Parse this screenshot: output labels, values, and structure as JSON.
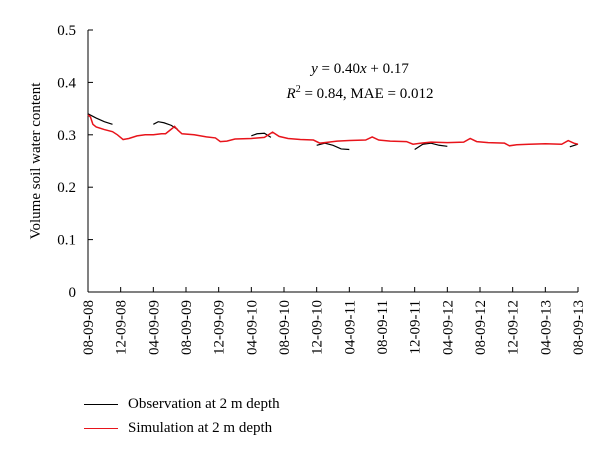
{
  "chart_data": {
    "type": "line",
    "ylabel": "Volume soil water content",
    "xlabel": "",
    "ylim": [
      0,
      0.5
    ],
    "yticks": [
      "0",
      "0.1",
      "0.2",
      "0.3",
      "0.4",
      "0.5"
    ],
    "xticks": [
      "08-09-08",
      "12-09-08",
      "04-09-09",
      "08-09-09",
      "12-09-09",
      "04-09-10",
      "08-09-10",
      "12-09-10",
      "04-09-11",
      "08-09-11",
      "12-09-11",
      "04-09-12",
      "08-09-12",
      "12-09-12",
      "04-09-13",
      "08-09-13"
    ],
    "annotation": {
      "line1": {
        "y": "y",
        "eq": " = 0.40",
        "x": "x",
        "rest": " + 0.17"
      },
      "line2": {
        "r": "R",
        "sup": "2",
        "rest": " = 0.84, MAE = 0.012"
      }
    },
    "series": [
      {
        "name": "Observation at 2 m depth",
        "color": "#000000",
        "segments": [
          [
            [
              0.0,
              0.34
            ],
            [
              1.0,
              0.332
            ],
            [
              2.0,
              0.325
            ],
            [
              3.0,
              0.32
            ]
          ],
          [
            [
              8.0,
              0.32
            ],
            [
              8.6,
              0.325
            ],
            [
              9.3,
              0.323
            ],
            [
              10.2,
              0.318
            ],
            [
              11.0,
              0.31
            ]
          ],
          [
            [
              20.0,
              0.298
            ],
            [
              20.7,
              0.302
            ],
            [
              21.6,
              0.303
            ],
            [
              22.4,
              0.295
            ]
          ],
          [
            [
              28.0,
              0.28
            ],
            [
              29.0,
              0.284
            ],
            [
              30.0,
              0.28
            ],
            [
              31.0,
              0.273
            ],
            [
              32.0,
              0.272
            ]
          ],
          [
            [
              40.0,
              0.272
            ],
            [
              41.0,
              0.282
            ],
            [
              42.0,
              0.284
            ],
            [
              43.0,
              0.28
            ],
            [
              44.0,
              0.278
            ]
          ],
          [
            [
              59.0,
              0.277
            ],
            [
              60.0,
              0.282
            ]
          ]
        ]
      },
      {
        "name": "Simulation at 2 m depth",
        "color": "#e8141b",
        "points": [
          [
            0.0,
            0.338
          ],
          [
            0.3,
            0.334
          ],
          [
            0.6,
            0.32
          ],
          [
            1.0,
            0.315
          ],
          [
            2.0,
            0.31
          ],
          [
            3.0,
            0.306
          ],
          [
            3.6,
            0.3
          ],
          [
            4.3,
            0.291
          ],
          [
            5.0,
            0.293
          ],
          [
            6.0,
            0.298
          ],
          [
            7.0,
            0.3
          ],
          [
            8.0,
            0.3
          ],
          [
            9.0,
            0.302
          ],
          [
            9.5,
            0.302
          ],
          [
            10.3,
            0.312
          ],
          [
            10.6,
            0.316
          ],
          [
            11.0,
            0.309
          ],
          [
            11.5,
            0.302
          ],
          [
            13.0,
            0.3
          ],
          [
            14.5,
            0.296
          ],
          [
            15.6,
            0.294
          ],
          [
            16.2,
            0.287
          ],
          [
            17.0,
            0.288
          ],
          [
            18.0,
            0.292
          ],
          [
            20.0,
            0.293
          ],
          [
            21.6,
            0.295
          ],
          [
            22.6,
            0.305
          ],
          [
            23.4,
            0.297
          ],
          [
            24.5,
            0.293
          ],
          [
            26.0,
            0.291
          ],
          [
            27.6,
            0.29
          ],
          [
            28.4,
            0.284
          ],
          [
            29.5,
            0.286
          ],
          [
            30.5,
            0.288
          ],
          [
            32.0,
            0.289
          ],
          [
            34.0,
            0.29
          ],
          [
            34.8,
            0.296
          ],
          [
            35.6,
            0.29
          ],
          [
            37.0,
            0.288
          ],
          [
            39.0,
            0.287
          ],
          [
            39.8,
            0.282
          ],
          [
            40.8,
            0.284
          ],
          [
            42.0,
            0.286
          ],
          [
            44.0,
            0.285
          ],
          [
            46.0,
            0.286
          ],
          [
            46.8,
            0.293
          ],
          [
            47.6,
            0.287
          ],
          [
            49.0,
            0.285
          ],
          [
            51.0,
            0.284
          ],
          [
            51.6,
            0.279
          ],
          [
            52.5,
            0.281
          ],
          [
            54.0,
            0.282
          ],
          [
            56.0,
            0.283
          ],
          [
            58.0,
            0.282
          ],
          [
            58.8,
            0.289
          ],
          [
            59.5,
            0.284
          ],
          [
            60.0,
            0.282
          ]
        ]
      }
    ]
  },
  "legend": {
    "items": [
      {
        "label": "Observation at 2 m depth",
        "color": "#000000"
      },
      {
        "label": "Simulation at 2 m depth",
        "color": "#e8141b"
      }
    ]
  }
}
